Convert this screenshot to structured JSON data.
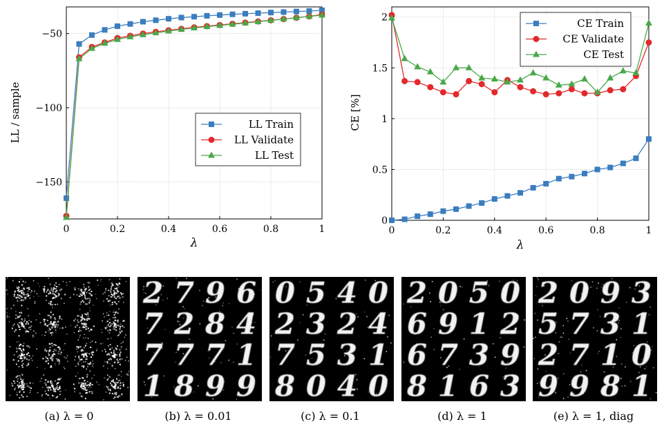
{
  "chart_data": [
    {
      "type": "line",
      "xlabel": "λ",
      "ylabel": "LL / sample",
      "xlim": [
        0,
        1
      ],
      "ylim": [
        -175,
        -32
      ],
      "xticks": [
        "0",
        "0.2",
        "0.4",
        "0.6",
        "0.8",
        "1"
      ],
      "yticks": [
        "−150",
        "−100",
        "−50"
      ],
      "grid": true,
      "legend": "center-right",
      "x": [
        0,
        0.05,
        0.1,
        0.15,
        0.2,
        0.25,
        0.3,
        0.35,
        0.4,
        0.45,
        0.5,
        0.55,
        0.6,
        0.65,
        0.7,
        0.75,
        0.8,
        0.85,
        0.9,
        0.95,
        1
      ],
      "series": [
        {
          "name": "LL Train",
          "color": "#3b7dbf",
          "marker": "square",
          "values": [
            -161,
            -57,
            -51,
            -47.5,
            -45,
            -43.5,
            -42,
            -41,
            -40,
            -39.2,
            -38.6,
            -38,
            -37.5,
            -37,
            -36.6,
            -36.2,
            -35.8,
            -35.5,
            -35.1,
            -34.8,
            -34.3
          ]
        },
        {
          "name": "LL Validate",
          "color": "#e2292b",
          "marker": "circle",
          "values": [
            -173,
            -66,
            -59,
            -56,
            -53,
            -51.5,
            -50,
            -48.8,
            -47.8,
            -46.8,
            -45.8,
            -45,
            -44.2,
            -43.4,
            -42.6,
            -41.8,
            -41,
            -40.2,
            -39.3,
            -38.4,
            -37.2
          ]
        },
        {
          "name": "LL Test",
          "color": "#4aa84a",
          "marker": "triangle",
          "values": [
            -174,
            -67,
            -60,
            -56.5,
            -54,
            -52.2,
            -50.8,
            -49.5,
            -48.3,
            -47.2,
            -46.2,
            -45.3,
            -44.5,
            -43.7,
            -42.9,
            -42,
            -41.1,
            -40.2,
            -39.3,
            -38.4,
            -37.6
          ]
        }
      ]
    },
    {
      "type": "line",
      "xlabel": "λ",
      "ylabel": "CE [%]",
      "xlim": [
        0,
        1
      ],
      "ylim": [
        0,
        2.1
      ],
      "xticks": [
        "0",
        "0.2",
        "0.4",
        "0.6",
        "0.8",
        "1"
      ],
      "yticks": [
        "0",
        "0.5",
        "1",
        "1.5",
        "2"
      ],
      "grid": true,
      "legend": "top-right",
      "x": [
        0,
        0.05,
        0.1,
        0.15,
        0.2,
        0.25,
        0.3,
        0.35,
        0.4,
        0.45,
        0.5,
        0.55,
        0.6,
        0.65,
        0.7,
        0.75,
        0.8,
        0.85,
        0.9,
        0.95,
        1
      ],
      "series": [
        {
          "name": "CE Train",
          "color": "#3b7dbf",
          "marker": "square",
          "values": [
            0,
            0.01,
            0.04,
            0.06,
            0.09,
            0.11,
            0.14,
            0.17,
            0.21,
            0.24,
            0.27,
            0.32,
            0.36,
            0.41,
            0.43,
            0.46,
            0.5,
            0.52,
            0.56,
            0.61,
            0.8
          ]
        },
        {
          "name": "CE Validate",
          "color": "#e2292b",
          "marker": "circle",
          "values": [
            2.02,
            1.37,
            1.36,
            1.31,
            1.26,
            1.24,
            1.37,
            1.34,
            1.26,
            1.38,
            1.31,
            1.27,
            1.24,
            1.25,
            1.29,
            1.25,
            1.25,
            1.28,
            1.29,
            1.42,
            1.75
          ]
        },
        {
          "name": "CE Test",
          "color": "#4aa84a",
          "marker": "triangle",
          "values": [
            1.99,
            1.59,
            1.51,
            1.46,
            1.36,
            1.5,
            1.5,
            1.4,
            1.39,
            1.36,
            1.38,
            1.45,
            1.4,
            1.33,
            1.34,
            1.39,
            1.26,
            1.4,
            1.47,
            1.45,
            1.94
          ]
        }
      ]
    }
  ],
  "panels": [
    {
      "caption": "(a)  λ = 0"
    },
    {
      "caption": "(b)  λ = 0.01"
    },
    {
      "caption": "(c)  λ = 0.1"
    },
    {
      "caption": "(d)  λ = 1"
    },
    {
      "caption": "(e)  λ = 1, diag"
    }
  ],
  "sample_grids": [
    {
      "digits": [
        "",
        "",
        "",
        "",
        "",
        "",
        "",
        "",
        "",
        "",
        "",
        "",
        "",
        "",
        "",
        ""
      ]
    },
    {
      "digits": [
        "2",
        "7",
        "9",
        "6",
        "7",
        "2",
        "8",
        "4",
        "7",
        "7",
        "7",
        "1",
        "1",
        "8",
        "9",
        "9"
      ]
    },
    {
      "digits": [
        "0",
        "5",
        "4",
        "0",
        "2",
        "3",
        "2",
        "4",
        "7",
        "5",
        "3",
        "1",
        "8",
        "0",
        "4",
        "0"
      ]
    },
    {
      "digits": [
        "2",
        "0",
        "5",
        "0",
        "6",
        "9",
        "1",
        "2",
        "6",
        "7",
        "3",
        "9",
        "8",
        "1",
        "6",
        "3"
      ]
    },
    {
      "digits": [
        "2",
        "0",
        "9",
        "3",
        "5",
        "7",
        "3",
        "1",
        "2",
        "7",
        "1",
        "0",
        "9",
        "9",
        "8",
        "1"
      ]
    }
  ]
}
